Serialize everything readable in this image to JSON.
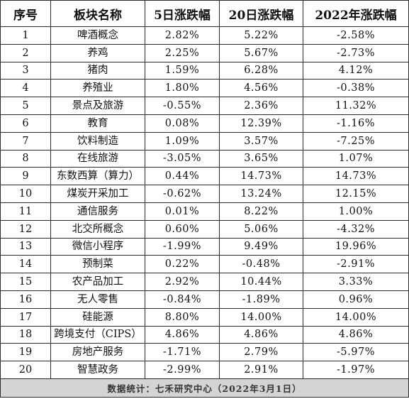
{
  "headers": [
    "序号",
    "板块名称",
    "5日涨跌幅",
    "20日涨跌幅",
    "2022年涨跌幅"
  ],
  "rows": [
    {
      "no": "1",
      "name": "啤酒概念",
      "d5": "2.82%",
      "d20": "5.22%",
      "ytd": "-2.58%"
    },
    {
      "no": "2",
      "name": "养鸡",
      "d5": "2.25%",
      "d20": "5.67%",
      "ytd": "-2.73%"
    },
    {
      "no": "3",
      "name": "猪肉",
      "d5": "1.59%",
      "d20": "6.28%",
      "ytd": "4.12%"
    },
    {
      "no": "4",
      "name": "养殖业",
      "d5": "1.80%",
      "d20": "4.56%",
      "ytd": "-0.38%"
    },
    {
      "no": "5",
      "name": "景点及旅游",
      "d5": "-0.55%",
      "d20": "2.36%",
      "ytd": "11.32%"
    },
    {
      "no": "6",
      "name": "教育",
      "d5": "0.08%",
      "d20": "12.39%",
      "ytd": "-1.16%"
    },
    {
      "no": "7",
      "name": "饮料制造",
      "d5": "1.09%",
      "d20": "3.57%",
      "ytd": "-7.25%"
    },
    {
      "no": "8",
      "name": "在线旅游",
      "d5": "-3.05%",
      "d20": "3.65%",
      "ytd": "1.07%"
    },
    {
      "no": "9",
      "name": "东数西算（算力）",
      "d5": "0.44%",
      "d20": "14.73%",
      "ytd": "14.73%"
    },
    {
      "no": "10",
      "name": "煤炭开采加工",
      "d5": "-0.62%",
      "d20": "13.24%",
      "ytd": "12.15%"
    },
    {
      "no": "11",
      "name": "通信服务",
      "d5": "0.01%",
      "d20": "8.22%",
      "ytd": "1.00%"
    },
    {
      "no": "12",
      "name": "北交所概念",
      "d5": "0.60%",
      "d20": "5.06%",
      "ytd": "-4.32%"
    },
    {
      "no": "13",
      "name": "微信小程序",
      "d5": "-1.99%",
      "d20": "9.49%",
      "ytd": "19.96%"
    },
    {
      "no": "14",
      "name": "预制菜",
      "d5": "0.22%",
      "d20": "-0.48%",
      "ytd": "-2.91%"
    },
    {
      "no": "15",
      "name": "农产品加工",
      "d5": "2.92%",
      "d20": "10.44%",
      "ytd": "3.33%"
    },
    {
      "no": "16",
      "name": "无人零售",
      "d5": "-0.84%",
      "d20": "-1.89%",
      "ytd": "0.96%"
    },
    {
      "no": "17",
      "name": "硅能源",
      "d5": "8.80%",
      "d20": "14.00%",
      "ytd": "14.00%"
    },
    {
      "no": "18",
      "name": "跨境支付（CIPS）",
      "d5": "4.86%",
      "d20": "4.86%",
      "ytd": "4.86%"
    },
    {
      "no": "19",
      "name": "房地产服务",
      "d5": "-1.71%",
      "d20": "2.79%",
      "ytd": "-5.97%"
    },
    {
      "no": "20",
      "name": "智慧政务",
      "d5": "-2.99%",
      "d20": "2.91%",
      "ytd": "-1.97%"
    }
  ],
  "footer": "数据统计：七禾研究中心（2022年3月1日）"
}
